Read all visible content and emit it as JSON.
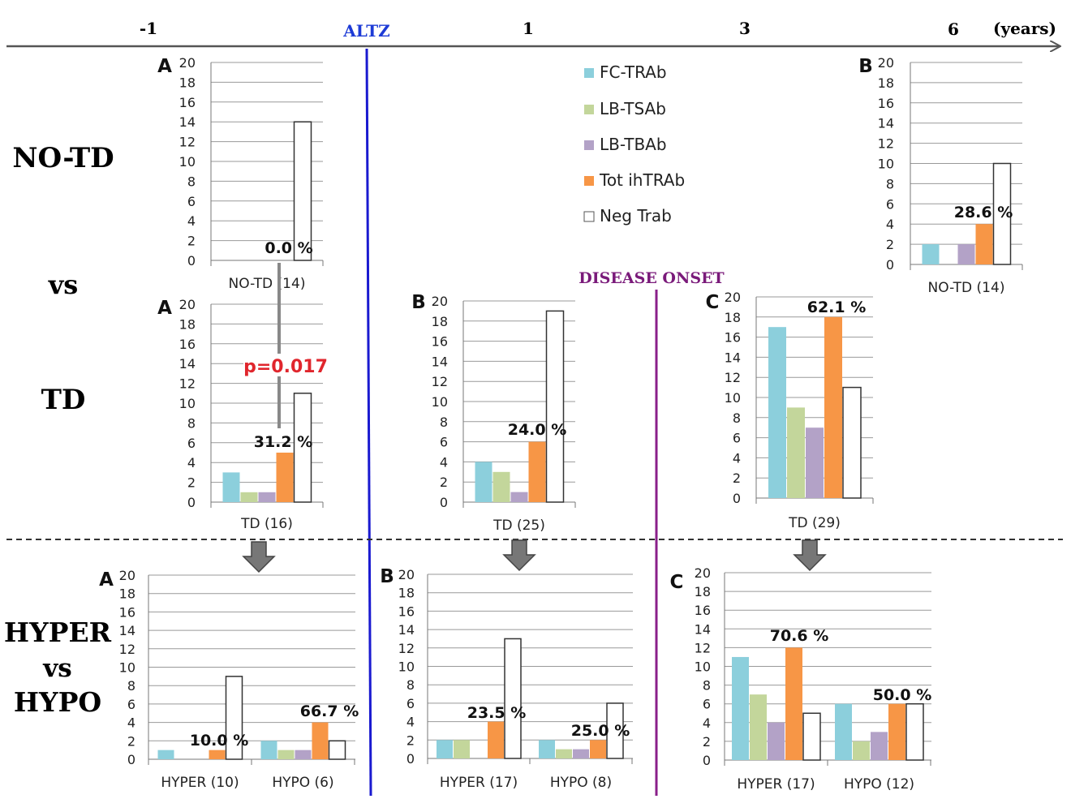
{
  "timeline": {
    "ticks": [
      "-1",
      "ALTZ",
      "1",
      "3",
      "6"
    ],
    "unit": "(years)",
    "disease_onset": "DISEASE  ONSET"
  },
  "row_labels": {
    "no_td": "NO-TD",
    "vs1": "vs",
    "td": "TD",
    "hyper": "HYPER",
    "vs2": "vs",
    "hypo": "HYPO"
  },
  "p_value": "p=0.017",
  "legend": [
    {
      "name": "FC-TRAb",
      "color": "#8ccfdc"
    },
    {
      "name": "LB-TSAb",
      "color": "#c3d69b"
    },
    {
      "name": "LB-TBAb",
      "color": "#b3a2c7"
    },
    {
      "name": "Tot ihTRAb",
      "color": "#f79646"
    },
    {
      "name": "Neg Trab",
      "color": "#ffffff"
    }
  ],
  "chart_data": [
    {
      "id": "notd_a",
      "panel_letter": "A",
      "type": "bar",
      "ylim": [
        0,
        20
      ],
      "yticks": [
        0,
        2,
        4,
        6,
        8,
        10,
        12,
        14,
        16,
        18,
        20
      ],
      "groups": [
        {
          "label": "NO-TD (14)",
          "values": [
            0,
            0,
            0,
            0,
            14
          ],
          "pct": "0.0 %"
        }
      ]
    },
    {
      "id": "notd_b",
      "panel_letter": "B",
      "type": "bar",
      "ylim": [
        0,
        20
      ],
      "yticks": [
        0,
        2,
        4,
        6,
        8,
        10,
        12,
        14,
        16,
        18,
        20
      ],
      "groups": [
        {
          "label": "NO-TD (14)",
          "values": [
            2,
            0,
            2,
            4,
            10
          ],
          "pct": "28.6 %"
        }
      ]
    },
    {
      "id": "td_a",
      "panel_letter": "A",
      "type": "bar",
      "ylim": [
        0,
        20
      ],
      "yticks": [
        0,
        2,
        4,
        6,
        8,
        10,
        12,
        14,
        16,
        18,
        20
      ],
      "groups": [
        {
          "label": "TD (16)",
          "values": [
            3,
            1,
            1,
            5,
            11
          ],
          "pct": "31.2 %"
        }
      ]
    },
    {
      "id": "td_b",
      "panel_letter": "B",
      "type": "bar",
      "ylim": [
        0,
        20
      ],
      "yticks": [
        0,
        2,
        4,
        6,
        8,
        10,
        12,
        14,
        16,
        18,
        20
      ],
      "groups": [
        {
          "label": "TD (25)",
          "values": [
            4,
            3,
            1,
            6,
            19
          ],
          "pct": "24.0 %"
        }
      ]
    },
    {
      "id": "td_c",
      "panel_letter": "C",
      "type": "bar",
      "ylim": [
        0,
        20
      ],
      "yticks": [
        0,
        2,
        4,
        6,
        8,
        10,
        12,
        14,
        16,
        18,
        20
      ],
      "groups": [
        {
          "label": "TD (29)",
          "values": [
            17,
            9,
            7,
            18,
            11
          ],
          "pct": "62.1 %"
        }
      ]
    },
    {
      "id": "hh_a",
      "panel_letter": "A",
      "type": "bar",
      "ylim": [
        0,
        20
      ],
      "yticks": [
        0,
        2,
        4,
        6,
        8,
        10,
        12,
        14,
        16,
        18,
        20
      ],
      "groups": [
        {
          "label": "HYPER (10)",
          "values": [
            1,
            0,
            0,
            1,
            9
          ],
          "pct": "10.0 %"
        },
        {
          "label": "HYPO (6)",
          "values": [
            2,
            1,
            1,
            4,
            2
          ],
          "pct": "66.7 %"
        }
      ]
    },
    {
      "id": "hh_b",
      "panel_letter": "B",
      "type": "bar",
      "ylim": [
        0,
        20
      ],
      "yticks": [
        0,
        2,
        4,
        6,
        8,
        10,
        12,
        14,
        16,
        18,
        20
      ],
      "groups": [
        {
          "label": "HYPER (17)",
          "values": [
            2,
            2,
            0,
            4,
            13
          ],
          "pct": "23.5 %"
        },
        {
          "label": "HYPO (8)",
          "values": [
            2,
            1,
            1,
            2,
            6
          ],
          "pct": "25.0 %"
        }
      ]
    },
    {
      "id": "hh_c",
      "panel_letter": "C",
      "type": "bar",
      "ylim": [
        0,
        20
      ],
      "yticks": [
        0,
        2,
        4,
        6,
        8,
        10,
        12,
        14,
        16,
        18,
        20
      ],
      "groups": [
        {
          "label": "HYPER (17)",
          "values": [
            11,
            7,
            4,
            12,
            5
          ],
          "pct": "70.6  %"
        },
        {
          "label": "HYPO (12)",
          "values": [
            6,
            2,
            3,
            6,
            6
          ],
          "pct": "50.0  %"
        }
      ]
    }
  ]
}
